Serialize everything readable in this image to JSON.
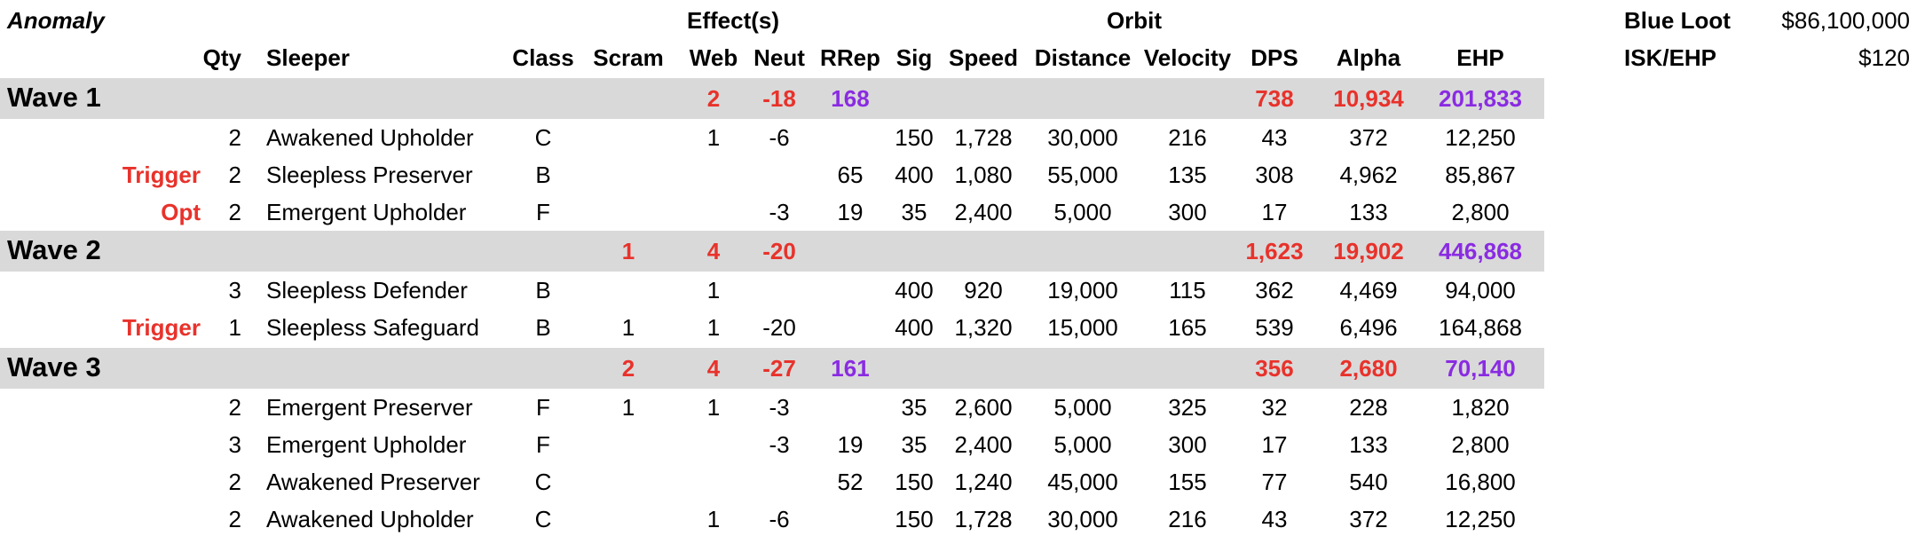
{
  "sheet": {
    "anomaly_label": "Anomaly",
    "group_effects": "Effect(s)",
    "group_orbit": "Orbit",
    "headers": [
      "Qty",
      "Sleeper",
      "Class",
      "Scram",
      "Web",
      "Neut",
      "RRep",
      "Sig",
      "Speed",
      "Distance",
      "Velocity",
      "DPS",
      "Alpha",
      "EHP"
    ],
    "summary": [
      {
        "label": "Blue Loot",
        "value": "$86,100,000"
      },
      {
        "label": "ISK/EHP",
        "value": "$120"
      }
    ],
    "colors": {
      "red": "#e8322b",
      "purple": "#8a2be2",
      "band": "#d9d9d9"
    },
    "waves": [
      {
        "title": "Wave 1",
        "totals": {
          "scram": "",
          "web": "2",
          "neut": "-18",
          "rrep": "168",
          "dps": "738",
          "alpha": "10,934",
          "ehp": "201,833"
        }
      },
      {
        "title": "Wave 2",
        "totals": {
          "scram": "1",
          "web": "4",
          "neut": "-20",
          "rrep": "",
          "dps": "1,623",
          "alpha": "19,902",
          "ehp": "446,868"
        }
      },
      {
        "title": "Wave 3",
        "totals": {
          "scram": "2",
          "web": "4",
          "neut": "-27",
          "rrep": "161",
          "dps": "356",
          "alpha": "2,680",
          "ehp": "70,140"
        }
      }
    ],
    "rows": [
      {
        "tag": "",
        "qty": "2",
        "sleeper": "Awakened Upholder",
        "class": "C",
        "scram": "",
        "web": "1",
        "neut": "-6",
        "rrep": "",
        "sig": "150",
        "speed": "1,728",
        "distance": "30,000",
        "velocity": "216",
        "dps": "43",
        "alpha": "372",
        "ehp": "12,250"
      },
      {
        "tag": "Trigger",
        "qty": "2",
        "sleeper": "Sleepless Preserver",
        "class": "B",
        "scram": "",
        "web": "",
        "neut": "",
        "rrep": "65",
        "sig": "400",
        "speed": "1,080",
        "distance": "55,000",
        "velocity": "135",
        "dps": "308",
        "alpha": "4,962",
        "ehp": "85,867"
      },
      {
        "tag": "Opt",
        "qty": "2",
        "sleeper": "Emergent Upholder",
        "class": "F",
        "scram": "",
        "web": "",
        "neut": "-3",
        "rrep": "19",
        "sig": "35",
        "speed": "2,400",
        "distance": "5,000",
        "velocity": "300",
        "dps": "17",
        "alpha": "133",
        "ehp": "2,800"
      },
      {
        "tag": "",
        "qty": "3",
        "sleeper": "Sleepless Defender",
        "class": "B",
        "scram": "",
        "web": "1",
        "neut": "",
        "rrep": "",
        "sig": "400",
        "speed": "920",
        "distance": "19,000",
        "velocity": "115",
        "dps": "362",
        "alpha": "4,469",
        "ehp": "94,000"
      },
      {
        "tag": "Trigger",
        "qty": "1",
        "sleeper": "Sleepless Safeguard",
        "class": "B",
        "scram": "1",
        "web": "1",
        "neut": "-20",
        "rrep": "",
        "sig": "400",
        "speed": "1,320",
        "distance": "15,000",
        "velocity": "165",
        "dps": "539",
        "alpha": "6,496",
        "ehp": "164,868"
      },
      {
        "tag": "",
        "qty": "2",
        "sleeper": "Emergent Preserver",
        "class": "F",
        "scram": "1",
        "web": "1",
        "neut": "-3",
        "rrep": "",
        "sig": "35",
        "speed": "2,600",
        "distance": "5,000",
        "velocity": "325",
        "dps": "32",
        "alpha": "228",
        "ehp": "1,820"
      },
      {
        "tag": "",
        "qty": "3",
        "sleeper": "Emergent Upholder",
        "class": "F",
        "scram": "",
        "web": "",
        "neut": "-3",
        "rrep": "19",
        "sig": "35",
        "speed": "2,400",
        "distance": "5,000",
        "velocity": "300",
        "dps": "17",
        "alpha": "133",
        "ehp": "2,800"
      },
      {
        "tag": "",
        "qty": "2",
        "sleeper": "Awakened Preserver",
        "class": "C",
        "scram": "",
        "web": "",
        "neut": "",
        "rrep": "52",
        "sig": "150",
        "speed": "1,240",
        "distance": "45,000",
        "velocity": "155",
        "dps": "77",
        "alpha": "540",
        "ehp": "16,800"
      },
      {
        "tag": "",
        "qty": "2",
        "sleeper": "Awakened Upholder",
        "class": "C",
        "scram": "",
        "web": "1",
        "neut": "-6",
        "rrep": "",
        "sig": "150",
        "speed": "1,728",
        "distance": "30,000",
        "velocity": "216",
        "dps": "43",
        "alpha": "372",
        "ehp": "12,250"
      }
    ]
  }
}
